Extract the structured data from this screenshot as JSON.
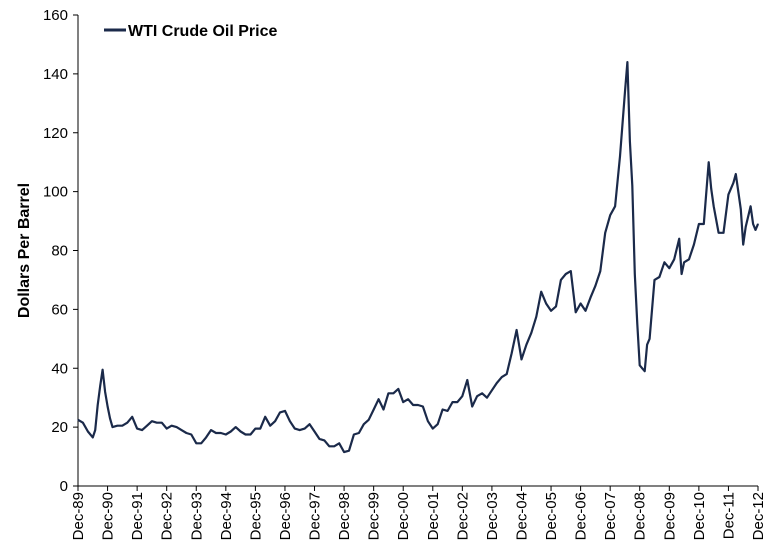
{
  "chart_data": {
    "type": "line",
    "title": "",
    "xlabel": "",
    "ylabel": "Dollars Per Barrel",
    "ylim": [
      0,
      160
    ],
    "yticks": [
      0,
      20,
      40,
      60,
      80,
      100,
      120,
      140,
      160
    ],
    "grid": false,
    "legend_position": "top-left",
    "line_color": "#1b2a4a",
    "x_tick_labels": [
      "Dec-89",
      "Dec-90",
      "Dec-91",
      "Dec-92",
      "Dec-93",
      "Dec-94",
      "Dec-95",
      "Dec-96",
      "Dec-97",
      "Dec-98",
      "Dec-99",
      "Dec-00",
      "Dec-01",
      "Dec-02",
      "Dec-03",
      "Dec-04",
      "Dec-05",
      "Dec-06",
      "Dec-07",
      "Dec-08",
      "Dec-09",
      "Dec-10",
      "Dec-11",
      "Dec-12"
    ],
    "series": [
      {
        "name": "WTI Crude Oil Price",
        "points": [
          [
            "1989-12",
            22.5
          ],
          [
            "1990-02",
            21.5
          ],
          [
            "1990-04",
            18.5
          ],
          [
            "1990-06",
            16.5
          ],
          [
            "1990-07",
            19.0
          ],
          [
            "1990-08",
            27.5
          ],
          [
            "1990-09",
            34.0
          ],
          [
            "1990-10",
            39.5
          ],
          [
            "1990-11",
            32.0
          ],
          [
            "1990-12",
            27.0
          ],
          [
            "1991-01",
            23.0
          ],
          [
            "1991-02",
            20.0
          ],
          [
            "1991-04",
            20.5
          ],
          [
            "1991-06",
            20.5
          ],
          [
            "1991-08",
            21.5
          ],
          [
            "1991-10",
            23.5
          ],
          [
            "1991-12",
            19.5
          ],
          [
            "1992-02",
            19.0
          ],
          [
            "1992-04",
            20.5
          ],
          [
            "1992-06",
            22.0
          ],
          [
            "1992-08",
            21.5
          ],
          [
            "1992-10",
            21.5
          ],
          [
            "1992-12",
            19.5
          ],
          [
            "1993-02",
            20.5
          ],
          [
            "1993-04",
            20.0
          ],
          [
            "1993-06",
            19.0
          ],
          [
            "1993-08",
            18.0
          ],
          [
            "1993-10",
            17.5
          ],
          [
            "1993-12",
            14.5
          ],
          [
            "1994-02",
            14.5
          ],
          [
            "1994-04",
            16.5
          ],
          [
            "1994-06",
            19.0
          ],
          [
            "1994-08",
            18.0
          ],
          [
            "1994-10",
            18.0
          ],
          [
            "1994-12",
            17.5
          ],
          [
            "1995-02",
            18.5
          ],
          [
            "1995-04",
            20.0
          ],
          [
            "1995-06",
            18.5
          ],
          [
            "1995-08",
            17.5
          ],
          [
            "1995-10",
            17.5
          ],
          [
            "1995-12",
            19.5
          ],
          [
            "1996-02",
            19.5
          ],
          [
            "1996-04",
            23.5
          ],
          [
            "1996-06",
            20.5
          ],
          [
            "1996-08",
            22.0
          ],
          [
            "1996-10",
            25.0
          ],
          [
            "1996-12",
            25.5
          ],
          [
            "1997-02",
            22.0
          ],
          [
            "1997-04",
            19.5
          ],
          [
            "1997-06",
            19.0
          ],
          [
            "1997-08",
            19.5
          ],
          [
            "1997-10",
            21.0
          ],
          [
            "1997-12",
            18.5
          ],
          [
            "1998-02",
            16.0
          ],
          [
            "1998-04",
            15.5
          ],
          [
            "1998-06",
            13.5
          ],
          [
            "1998-08",
            13.5
          ],
          [
            "1998-10",
            14.5
          ],
          [
            "1998-12",
            11.5
          ],
          [
            "1999-02",
            12.0
          ],
          [
            "1999-04",
            17.5
          ],
          [
            "1999-06",
            18.0
          ],
          [
            "1999-08",
            21.0
          ],
          [
            "1999-10",
            22.5
          ],
          [
            "1999-12",
            26.0
          ],
          [
            "2000-02",
            29.5
          ],
          [
            "2000-04",
            26.0
          ],
          [
            "2000-06",
            31.5
          ],
          [
            "2000-08",
            31.5
          ],
          [
            "2000-10",
            33.0
          ],
          [
            "2000-12",
            28.5
          ],
          [
            "2001-02",
            29.5
          ],
          [
            "2001-04",
            27.5
          ],
          [
            "2001-06",
            27.5
          ],
          [
            "2001-08",
            27.0
          ],
          [
            "2001-10",
            22.0
          ],
          [
            "2001-12",
            19.5
          ],
          [
            "2002-02",
            21.0
          ],
          [
            "2002-04",
            26.0
          ],
          [
            "2002-06",
            25.5
          ],
          [
            "2002-08",
            28.5
          ],
          [
            "2002-10",
            28.5
          ],
          [
            "2002-12",
            30.5
          ],
          [
            "2003-02",
            36.0
          ],
          [
            "2003-04",
            27.0
          ],
          [
            "2003-06",
            30.5
          ],
          [
            "2003-08",
            31.5
          ],
          [
            "2003-10",
            30.0
          ],
          [
            "2003-12",
            32.5
          ],
          [
            "2004-02",
            35.0
          ],
          [
            "2004-04",
            37.0
          ],
          [
            "2004-06",
            38.0
          ],
          [
            "2004-08",
            45.0
          ],
          [
            "2004-10",
            53.0
          ],
          [
            "2004-12",
            43.0
          ],
          [
            "2005-02",
            48.0
          ],
          [
            "2005-04",
            52.0
          ],
          [
            "2005-06",
            57.5
          ],
          [
            "2005-08",
            66.0
          ],
          [
            "2005-10",
            62.0
          ],
          [
            "2005-12",
            59.5
          ],
          [
            "2006-02",
            61.0
          ],
          [
            "2006-04",
            70.0
          ],
          [
            "2006-06",
            72.0
          ],
          [
            "2006-08",
            73.0
          ],
          [
            "2006-10",
            59.0
          ],
          [
            "2006-12",
            62.0
          ],
          [
            "2007-02",
            59.5
          ],
          [
            "2007-04",
            64.0
          ],
          [
            "2007-06",
            68.0
          ],
          [
            "2007-08",
            73.0
          ],
          [
            "2007-10",
            86.0
          ],
          [
            "2007-12",
            92.0
          ],
          [
            "2008-02",
            95.0
          ],
          [
            "2008-04",
            112.0
          ],
          [
            "2008-06",
            134.0
          ],
          [
            "2008-07",
            144.0
          ],
          [
            "2008-08",
            117.0
          ],
          [
            "2008-09",
            102.0
          ],
          [
            "2008-10",
            72.0
          ],
          [
            "2008-11",
            55.0
          ],
          [
            "2008-12",
            41.0
          ],
          [
            "2009-01",
            40.0
          ],
          [
            "2009-02",
            39.0
          ],
          [
            "2009-03",
            48.0
          ],
          [
            "2009-04",
            50.0
          ],
          [
            "2009-06",
            70.0
          ],
          [
            "2009-08",
            71.0
          ],
          [
            "2009-10",
            76.0
          ],
          [
            "2009-12",
            74.0
          ],
          [
            "2010-02",
            77.0
          ],
          [
            "2010-04",
            84.0
          ],
          [
            "2010-05",
            72.0
          ],
          [
            "2010-06",
            76.0
          ],
          [
            "2010-08",
            77.0
          ],
          [
            "2010-10",
            82.0
          ],
          [
            "2010-12",
            89.0
          ],
          [
            "2011-02",
            89.0
          ],
          [
            "2011-04",
            110.0
          ],
          [
            "2011-05",
            101.0
          ],
          [
            "2011-06",
            95.0
          ],
          [
            "2011-08",
            86.0
          ],
          [
            "2011-10",
            86.0
          ],
          [
            "2011-12",
            99.0
          ],
          [
            "2012-02",
            103.0
          ],
          [
            "2012-03",
            106.0
          ],
          [
            "2012-05",
            94.0
          ],
          [
            "2012-06",
            82.0
          ],
          [
            "2012-07",
            88.0
          ],
          [
            "2012-09",
            95.0
          ],
          [
            "2012-10",
            89.0
          ],
          [
            "2012-11",
            87.0
          ],
          [
            "2012-12",
            89.0
          ]
        ]
      }
    ]
  }
}
